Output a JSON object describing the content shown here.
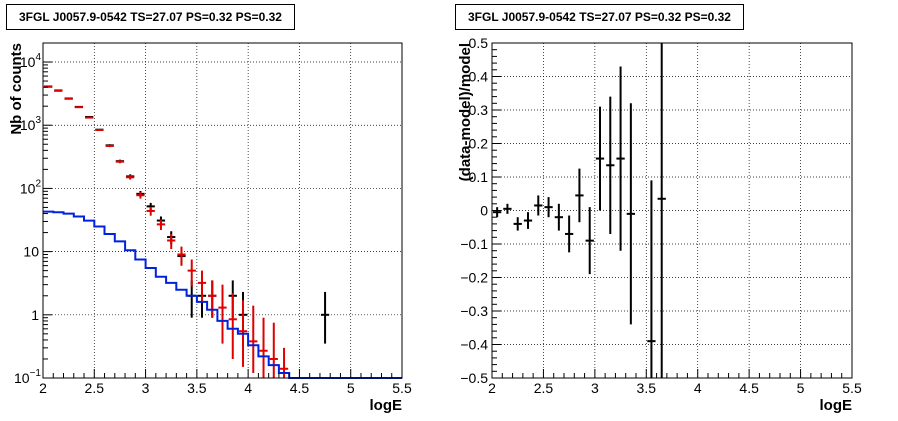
{
  "chart_data": [
    {
      "type": "scatter",
      "title": "3FGL J0057.9-0542 TS=27.07 PS=0.32 PS=0.32",
      "xlabel": "logE",
      "ylabel": "Nb of counts",
      "xlim": [
        2,
        5.5
      ],
      "ylim": [
        0.1,
        20000
      ],
      "yscale": "log",
      "grid": true,
      "x_ticks": [
        {
          "v": 2,
          "label": "2"
        },
        {
          "v": 2.5,
          "label": "2.5"
        },
        {
          "v": 3,
          "label": "3"
        },
        {
          "v": 3.5,
          "label": "3.5"
        },
        {
          "v": 4,
          "label": "4"
        },
        {
          "v": 4.5,
          "label": "4.5"
        },
        {
          "v": 5,
          "label": "5"
        },
        {
          "v": 5.5,
          "label": "5.5"
        }
      ],
      "y_ticks": [
        {
          "v": 0.1,
          "base": "10",
          "exp": "−1"
        },
        {
          "v": 1,
          "base": "1",
          "exp": ""
        },
        {
          "v": 10,
          "base": "10",
          "exp": ""
        },
        {
          "v": 100,
          "base": "10",
          "exp": "2"
        },
        {
          "v": 1000,
          "base": "10",
          "exp": "3"
        },
        {
          "v": 10000,
          "base": "10",
          "exp": "4"
        }
      ],
      "series": [
        {
          "color": "#000000",
          "style": "errorbar",
          "points": [
            {
              "x": 2.05,
              "y": 4100,
              "lo": 4030,
              "hi": 4170
            },
            {
              "x": 2.15,
              "y": 3550,
              "lo": 3490,
              "hi": 3610
            },
            {
              "x": 2.25,
              "y": 2650,
              "lo": 2600,
              "hi": 2700
            },
            {
              "x": 2.35,
              "y": 1950,
              "lo": 1910,
              "hi": 1990
            },
            {
              "x": 2.45,
              "y": 1350,
              "lo": 1320,
              "hi": 1380
            },
            {
              "x": 2.55,
              "y": 850,
              "lo": 830,
              "hi": 870
            },
            {
              "x": 2.65,
              "y": 480,
              "lo": 460,
              "hi": 500
            },
            {
              "x": 2.75,
              "y": 270,
              "lo": 255,
              "hi": 285
            },
            {
              "x": 2.85,
              "y": 155,
              "lo": 143,
              "hi": 167
            },
            {
              "x": 2.95,
              "y": 82,
              "lo": 73,
              "hi": 91
            },
            {
              "x": 3.05,
              "y": 52,
              "lo": 45,
              "hi": 59
            },
            {
              "x": 3.15,
              "y": 31,
              "lo": 26,
              "hi": 36
            },
            {
              "x": 3.25,
              "y": 17,
              "lo": 13,
              "hi": 21
            },
            {
              "x": 3.35,
              "y": 8.5,
              "lo": 6,
              "hi": 11.5
            },
            {
              "x": 3.45,
              "y": 2,
              "lo": 0.9,
              "hi": 3.5
            },
            {
              "x": 3.55,
              "y": 2,
              "lo": 0.9,
              "hi": 3.5
            },
            {
              "x": 3.65,
              "y": 2,
              "lo": 0.9,
              "hi": 3.5
            },
            {
              "x": 3.85,
              "y": 2,
              "lo": 0.9,
              "hi": 3.5
            },
            {
              "x": 3.95,
              "y": 1,
              "lo": 0.35,
              "hi": 2.3
            },
            {
              "x": 4.75,
              "y": 1,
              "lo": 0.35,
              "hi": 2.3
            }
          ]
        },
        {
          "color": "#e00000",
          "style": "errorbar",
          "points": [
            {
              "x": 2.05,
              "y": 4050,
              "lo": 3985,
              "hi": 4115
            },
            {
              "x": 2.15,
              "y": 3500,
              "lo": 3440,
              "hi": 3560
            },
            {
              "x": 2.25,
              "y": 2620,
              "lo": 2570,
              "hi": 2670
            },
            {
              "x": 2.35,
              "y": 1930,
              "lo": 1890,
              "hi": 1970
            },
            {
              "x": 2.45,
              "y": 1320,
              "lo": 1290,
              "hi": 1350
            },
            {
              "x": 2.55,
              "y": 840,
              "lo": 815,
              "hi": 865
            },
            {
              "x": 2.65,
              "y": 470,
              "lo": 450,
              "hi": 490
            },
            {
              "x": 2.75,
              "y": 265,
              "lo": 250,
              "hi": 280
            },
            {
              "x": 2.85,
              "y": 150,
              "lo": 138,
              "hi": 162
            },
            {
              "x": 2.95,
              "y": 78,
              "lo": 69,
              "hi": 87
            },
            {
              "x": 3.05,
              "y": 44,
              "lo": 37,
              "hi": 51
            },
            {
              "x": 3.15,
              "y": 27,
              "lo": 22,
              "hi": 32
            },
            {
              "x": 3.25,
              "y": 15,
              "lo": 11,
              "hi": 19
            },
            {
              "x": 3.35,
              "y": 9,
              "lo": 6,
              "hi": 12
            },
            {
              "x": 3.45,
              "y": 5,
              "lo": 2.8,
              "hi": 7.5
            },
            {
              "x": 3.55,
              "y": 3.2,
              "lo": 1.6,
              "hi": 5
            },
            {
              "x": 3.65,
              "y": 2,
              "lo": 0.9,
              "hi": 3.5
            },
            {
              "x": 3.75,
              "y": 1.3,
              "lo": 0.35,
              "hi": 3
            },
            {
              "x": 3.85,
              "y": 0.85,
              "lo": 0.2,
              "hi": 2.2
            },
            {
              "x": 3.95,
              "y": 0.55,
              "lo": 0.15,
              "hi": 1.7
            },
            {
              "x": 4.05,
              "y": 0.38,
              "lo": 0.12,
              "hi": 1.4
            },
            {
              "x": 4.15,
              "y": 0.27,
              "lo": 0.1,
              "hi": 0.9
            },
            {
              "x": 4.25,
              "y": 0.2,
              "lo": 0.1,
              "hi": 0.75
            },
            {
              "x": 4.35,
              "y": 0.14,
              "lo": 0.1,
              "hi": 0.3
            }
          ]
        },
        {
          "color": "#0022dd",
          "style": "step",
          "bin_width": 0.1,
          "bins": [
            {
              "x": 2.05,
              "y": 43
            },
            {
              "x": 2.15,
              "y": 42
            },
            {
              "x": 2.25,
              "y": 40
            },
            {
              "x": 2.35,
              "y": 36
            },
            {
              "x": 2.45,
              "y": 31
            },
            {
              "x": 2.55,
              "y": 25
            },
            {
              "x": 2.65,
              "y": 19
            },
            {
              "x": 2.75,
              "y": 14.5
            },
            {
              "x": 2.85,
              "y": 10.5
            },
            {
              "x": 2.95,
              "y": 7.5
            },
            {
              "x": 3.05,
              "y": 5.5
            },
            {
              "x": 3.15,
              "y": 4
            },
            {
              "x": 3.25,
              "y": 3.2
            },
            {
              "x": 3.35,
              "y": 2.5
            },
            {
              "x": 3.45,
              "y": 2
            },
            {
              "x": 3.55,
              "y": 1.6
            },
            {
              "x": 3.65,
              "y": 1.2
            },
            {
              "x": 3.75,
              "y": 0.8
            },
            {
              "x": 3.85,
              "y": 0.6
            },
            {
              "x": 3.95,
              "y": 0.5
            },
            {
              "x": 4.05,
              "y": 0.33
            },
            {
              "x": 4.15,
              "y": 0.22
            },
            {
              "x": 4.25,
              "y": 0.16
            },
            {
              "x": 4.35,
              "y": 0.12
            },
            {
              "x": 4.45,
              "y": 0.1
            },
            {
              "x": 4.55,
              "y": 0.1
            },
            {
              "x": 4.65,
              "y": 0.1
            },
            {
              "x": 4.75,
              "y": 0.1
            },
            {
              "x": 4.85,
              "y": 0.1
            },
            {
              "x": 4.95,
              "y": 0.1
            },
            {
              "x": 5.05,
              "y": 0.1
            },
            {
              "x": 5.15,
              "y": 0.1
            },
            {
              "x": 5.25,
              "y": 0.1
            },
            {
              "x": 5.35,
              "y": 0.1
            },
            {
              "x": 5.45,
              "y": 0.1
            }
          ]
        }
      ]
    },
    {
      "type": "scatter",
      "title": "3FGL J0057.9-0542 TS=27.07 PS=0.32 PS=0.32",
      "xlabel": "logE",
      "ylabel": "(data-model)/model",
      "xlim": [
        2,
        5.5
      ],
      "ylim": [
        -0.5,
        0.5
      ],
      "grid": true,
      "x_ticks": [
        {
          "v": 2,
          "label": "2"
        },
        {
          "v": 2.5,
          "label": "2.5"
        },
        {
          "v": 3,
          "label": "3"
        },
        {
          "v": 3.5,
          "label": "3.5"
        },
        {
          "v": 4,
          "label": "4"
        },
        {
          "v": 4.5,
          "label": "4.5"
        },
        {
          "v": 5,
          "label": "5"
        },
        {
          "v": 5.5,
          "label": "5.5"
        }
      ],
      "y_ticks": [
        {
          "v": -0.5,
          "label": "−0.5"
        },
        {
          "v": -0.4,
          "label": "−0.4"
        },
        {
          "v": -0.3,
          "label": "−0.3"
        },
        {
          "v": -0.2,
          "label": "−0.2"
        },
        {
          "v": -0.1,
          "label": "−0.1"
        },
        {
          "v": 0,
          "label": "0"
        },
        {
          "v": 0.1,
          "label": "0.1"
        },
        {
          "v": 0.2,
          "label": "0.2"
        },
        {
          "v": 0.3,
          "label": "0.3"
        },
        {
          "v": 0.4,
          "label": "0.4"
        },
        {
          "v": 0.5,
          "label": "0.5"
        }
      ],
      "series": [
        {
          "color": "#000000",
          "style": "errorbar",
          "points": [
            {
              "x": 2.05,
              "y": -0.005,
              "lo": -0.02,
              "hi": 0.01
            },
            {
              "x": 2.15,
              "y": 0.005,
              "lo": -0.01,
              "hi": 0.02
            },
            {
              "x": 2.25,
              "y": -0.04,
              "lo": -0.06,
              "hi": -0.02
            },
            {
              "x": 2.35,
              "y": -0.03,
              "lo": -0.055,
              "hi": -0.005
            },
            {
              "x": 2.45,
              "y": 0.015,
              "lo": -0.015,
              "hi": 0.045
            },
            {
              "x": 2.55,
              "y": 0.01,
              "lo": -0.02,
              "hi": 0.04
            },
            {
              "x": 2.65,
              "y": -0.02,
              "lo": -0.06,
              "hi": 0.02
            },
            {
              "x": 2.75,
              "y": -0.07,
              "lo": -0.125,
              "hi": -0.015
            },
            {
              "x": 2.85,
              "y": 0.045,
              "lo": -0.035,
              "hi": 0.125
            },
            {
              "x": 2.95,
              "y": -0.09,
              "lo": -0.19,
              "hi": 0.01
            },
            {
              "x": 3.05,
              "y": 0.155,
              "lo": 0.0,
              "hi": 0.31
            },
            {
              "x": 3.15,
              "y": 0.135,
              "lo": -0.07,
              "hi": 0.34
            },
            {
              "x": 3.25,
              "y": 0.155,
              "lo": -0.12,
              "hi": 0.43
            },
            {
              "x": 3.35,
              "y": -0.01,
              "lo": -0.34,
              "hi": 0.32
            },
            {
              "x": 3.55,
              "y": -0.39,
              "lo": -0.5,
              "hi": 0.09
            },
            {
              "x": 3.65,
              "y": 0.035,
              "lo": -0.5,
              "hi": 0.5
            }
          ]
        }
      ]
    }
  ]
}
